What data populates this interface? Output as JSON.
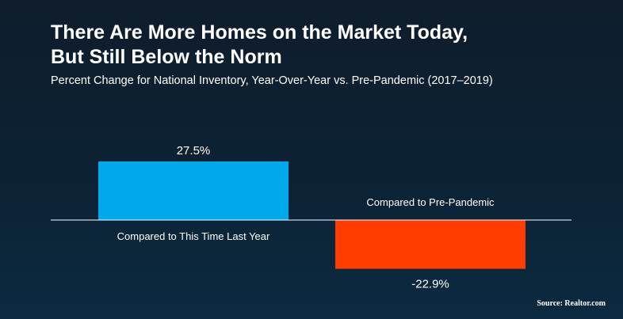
{
  "title_line1": "There Are More Homes on the Market Today,",
  "title_line2": "But Still Below the Norm",
  "subtitle": "Percent Change for National Inventory, Year-Over-Year vs. Pre-Pandemic (2017–2019)",
  "source": "Source: Realtor.com",
  "chart_data": {
    "type": "bar",
    "categories": [
      "Compared to This Time Last Year",
      "Compared to Pre-Pandemic"
    ],
    "values": [
      27.5,
      -22.9
    ],
    "value_labels": [
      "27.5%",
      "-22.9%"
    ],
    "colors": [
      "#00a8ec",
      "#ff3d00"
    ],
    "baseline_color": "#ffffff",
    "grid": false
  }
}
